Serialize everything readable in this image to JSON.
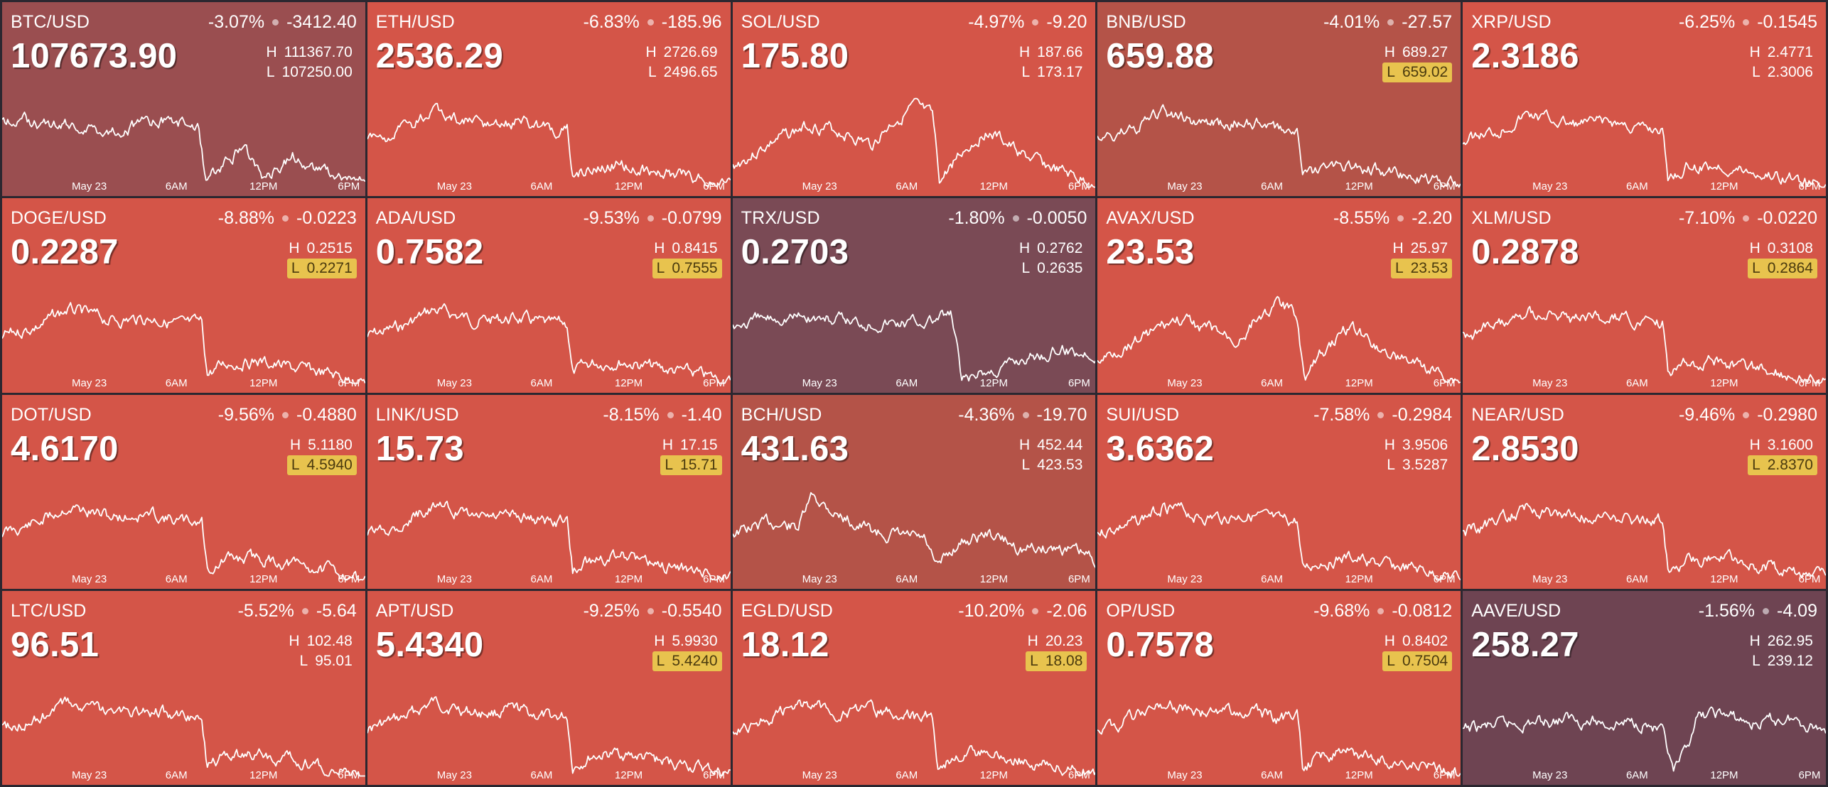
{
  "colors": {
    "red": "#d45548",
    "dark": "#7a4a55",
    "brown": "#9a4e50",
    "darkred": "#b45348",
    "deep": "#6e4452",
    "low_highlight": "#e8c34e"
  },
  "axis_labels": [
    "May 23",
    "6AM",
    "12PM",
    "6PM"
  ],
  "tiles": [
    {
      "symbol": "BTC/USD",
      "pct": "-3.07%",
      "delta": "-3412.40",
      "price": "107673.90",
      "high": "111367.70",
      "low": "107250.00",
      "low_hit": false,
      "bg": "#9a4e50",
      "seed": 1,
      "shape": "btc"
    },
    {
      "symbol": "ETH/USD",
      "pct": "-6.83%",
      "delta": "-185.96",
      "price": "2536.29",
      "high": "2726.69",
      "low": "2496.65",
      "low_hit": false,
      "bg": "#d45548",
      "seed": 2,
      "shape": "drop"
    },
    {
      "symbol": "SOL/USD",
      "pct": "-4.97%",
      "delta": "-9.20",
      "price": "175.80",
      "high": "187.66",
      "low": "173.17",
      "low_hit": false,
      "bg": "#d45548",
      "seed": 3,
      "shape": "sol"
    },
    {
      "symbol": "BNB/USD",
      "pct": "-4.01%",
      "delta": "-27.57",
      "price": "659.88",
      "high": "689.27",
      "low": "659.02",
      "low_hit": true,
      "bg": "#b45348",
      "seed": 4,
      "shape": "drop"
    },
    {
      "symbol": "XRP/USD",
      "pct": "-6.25%",
      "delta": "-0.1545",
      "price": "2.3186",
      "high": "2.4771",
      "low": "2.3006",
      "low_hit": false,
      "bg": "#d45548",
      "seed": 5,
      "shape": "drop"
    },
    {
      "symbol": "DOGE/USD",
      "pct": "-8.88%",
      "delta": "-0.0223",
      "price": "0.2287",
      "high": "0.2515",
      "low": "0.2271",
      "low_hit": true,
      "bg": "#d45548",
      "seed": 6,
      "shape": "drop"
    },
    {
      "symbol": "ADA/USD",
      "pct": "-9.53%",
      "delta": "-0.0799",
      "price": "0.7582",
      "high": "0.8415",
      "low": "0.7555",
      "low_hit": true,
      "bg": "#d45548",
      "seed": 7,
      "shape": "drop"
    },
    {
      "symbol": "TRX/USD",
      "pct": "-1.80%",
      "delta": "-0.0050",
      "price": "0.2703",
      "high": "0.2762",
      "low": "0.2635",
      "low_hit": false,
      "bg": "#7a4a55",
      "seed": 8,
      "shape": "trx"
    },
    {
      "symbol": "AVAX/USD",
      "pct": "-8.55%",
      "delta": "-2.20",
      "price": "23.53",
      "high": "25.97",
      "low": "23.53",
      "low_hit": true,
      "bg": "#d45548",
      "seed": 9,
      "shape": "sol"
    },
    {
      "symbol": "XLM/USD",
      "pct": "-7.10%",
      "delta": "-0.0220",
      "price": "0.2878",
      "high": "0.3108",
      "low": "0.2864",
      "low_hit": true,
      "bg": "#d45548",
      "seed": 10,
      "shape": "drop"
    },
    {
      "symbol": "DOT/USD",
      "pct": "-9.56%",
      "delta": "-0.4880",
      "price": "4.6170",
      "high": "5.1180",
      "low": "4.5940",
      "low_hit": true,
      "bg": "#d45548",
      "seed": 11,
      "shape": "drop"
    },
    {
      "symbol": "LINK/USD",
      "pct": "-8.15%",
      "delta": "-1.40",
      "price": "15.73",
      "high": "17.15",
      "low": "15.71",
      "low_hit": true,
      "bg": "#d45548",
      "seed": 12,
      "shape": "drop"
    },
    {
      "symbol": "BCH/USD",
      "pct": "-4.36%",
      "delta": "-19.70",
      "price": "431.63",
      "high": "452.44",
      "low": "423.53",
      "low_hit": false,
      "bg": "#b45348",
      "seed": 13,
      "shape": "bch"
    },
    {
      "symbol": "SUI/USD",
      "pct": "-7.58%",
      "delta": "-0.2984",
      "price": "3.6362",
      "high": "3.9506",
      "low": "3.5287",
      "low_hit": false,
      "bg": "#d45548",
      "seed": 14,
      "shape": "drop"
    },
    {
      "symbol": "NEAR/USD",
      "pct": "-9.46%",
      "delta": "-0.2980",
      "price": "2.8530",
      "high": "3.1600",
      "low": "2.8370",
      "low_hit": true,
      "bg": "#d45548",
      "seed": 15,
      "shape": "drop"
    },
    {
      "symbol": "LTC/USD",
      "pct": "-5.52%",
      "delta": "-5.64",
      "price": "96.51",
      "high": "102.48",
      "low": "95.01",
      "low_hit": false,
      "bg": "#d45548",
      "seed": 16,
      "shape": "drop"
    },
    {
      "symbol": "APT/USD",
      "pct": "-9.25%",
      "delta": "-0.5540",
      "price": "5.4340",
      "high": "5.9930",
      "low": "5.4240",
      "low_hit": true,
      "bg": "#d45548",
      "seed": 17,
      "shape": "drop"
    },
    {
      "symbol": "EGLD/USD",
      "pct": "-10.20%",
      "delta": "-2.06",
      "price": "18.12",
      "high": "20.23",
      "low": "18.08",
      "low_hit": true,
      "bg": "#d45548",
      "seed": 18,
      "shape": "drop"
    },
    {
      "symbol": "OP/USD",
      "pct": "-9.68%",
      "delta": "-0.0812",
      "price": "0.7578",
      "high": "0.8402",
      "low": "0.7504",
      "low_hit": true,
      "bg": "#d45548",
      "seed": 19,
      "shape": "drop"
    },
    {
      "symbol": "AAVE/USD",
      "pct": "-1.56%",
      "delta": "-4.09",
      "price": "258.27",
      "high": "262.95",
      "low": "239.12",
      "low_hit": false,
      "bg": "#6e4452",
      "seed": 20,
      "shape": "aave"
    }
  ]
}
